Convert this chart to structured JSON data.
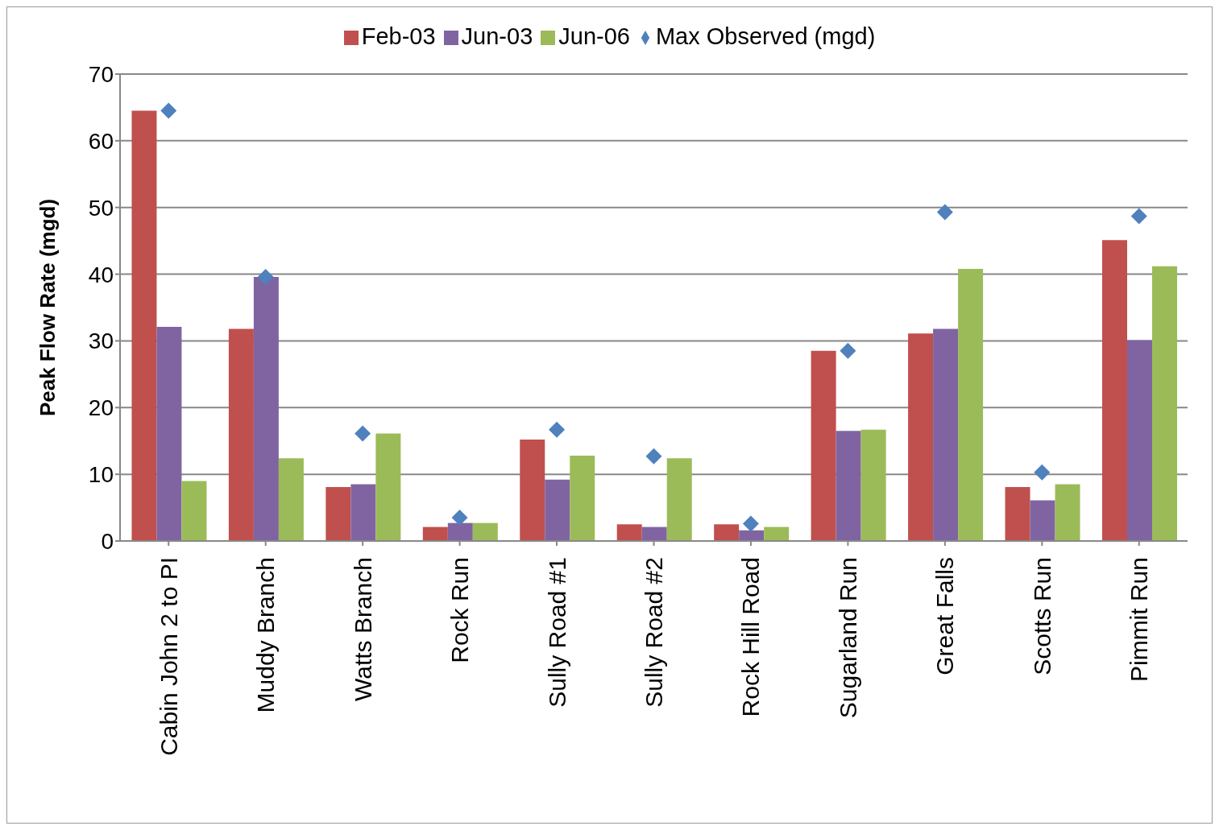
{
  "chart_data": {
    "type": "bar",
    "ylabel": "Peak Flow Rate  (mgd)",
    "categories": [
      "Cabin John 2 to PI",
      "Muddy Branch",
      "Watts Branch",
      "Rock Run",
      "Sully Road #1",
      "Sully Road #2",
      "Rock Hill Road",
      "Sugarland Run",
      "Great Falls",
      "Scotts Run",
      "Pimmit Run"
    ],
    "series": [
      {
        "name": "Feb-03",
        "color": "#c0504d",
        "values": [
          64.5,
          31.8,
          8.1,
          2.1,
          15.2,
          2.5,
          2.5,
          28.5,
          31.1,
          8.1,
          45.1
        ]
      },
      {
        "name": "Jun-03",
        "color": "#8064a2",
        "values": [
          32.1,
          39.6,
          8.5,
          2.7,
          9.2,
          2.1,
          1.6,
          16.5,
          31.8,
          6.1,
          30.1
        ]
      },
      {
        "name": "Jun-06",
        "color": "#9bbb59",
        "values": [
          9.0,
          12.4,
          16.1,
          2.7,
          12.8,
          12.4,
          2.1,
          16.7,
          40.8,
          8.5,
          41.2
        ]
      },
      {
        "name": "Max Observed (mgd)",
        "type": "scatter",
        "marker": "diamond",
        "color": "#4f81bd",
        "values": [
          64.5,
          39.6,
          16.1,
          3.5,
          16.7,
          12.7,
          2.6,
          28.5,
          49.3,
          10.3,
          48.7
        ]
      }
    ],
    "ylim": [
      0,
      70
    ],
    "yticks": [
      0,
      10,
      20,
      30,
      40,
      50,
      60,
      70
    ],
    "grid": "y",
    "legend": "top"
  }
}
